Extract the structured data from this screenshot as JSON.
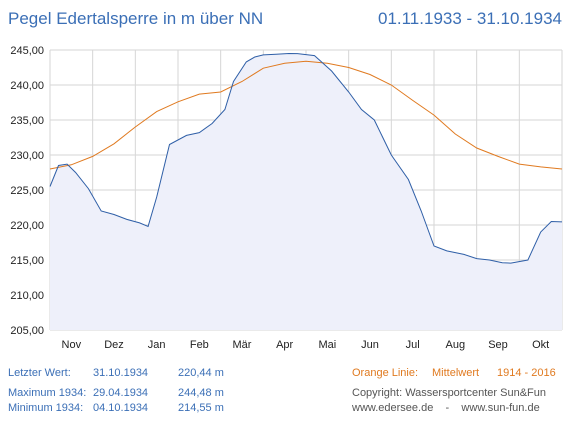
{
  "header": {
    "title": "Pegel Edertalsperre in m über NN",
    "period": "01.11.1933 - 31.10.1934"
  },
  "stats": [
    {
      "label": "Letzter Wert:",
      "date": "31.10.1934",
      "value": "220,44 m"
    },
    {
      "label": "Maximum 1934:",
      "date": "29.04.1934",
      "value": "244,48 m"
    },
    {
      "label": "Minimum  1934:",
      "date": "04.10.1934",
      "value": "214,55 m"
    }
  ],
  "legend": {
    "label": "Orange Linie:",
    "name": "Mittelwert",
    "years": "1914 - 2016"
  },
  "credits": {
    "copyright": "Copyright: Wassersportcenter Sun&Fun",
    "sites": "www.edersee.de    -    www.sun-fun.de"
  },
  "colors": {
    "actual": "#2f5fa7",
    "mean": "#e07a20",
    "fill": "#eef0fa",
    "grid": "#d6d6d6",
    "title": "#3b6fb6"
  },
  "chart_data": {
    "type": "line",
    "xlabel": "",
    "ylabel": "",
    "ylim": [
      205,
      245
    ],
    "yticks": [
      "205,00",
      "210,00",
      "215,00",
      "220,00",
      "225,00",
      "230,00",
      "235,00",
      "240,00",
      "245,00"
    ],
    "xticks": [
      "Nov",
      "Dez",
      "Jan",
      "Feb",
      "Mär",
      "Apr",
      "Mai",
      "Jun",
      "Jul",
      "Aug",
      "Sep",
      "Okt"
    ],
    "x_unit": "month (0 = 1 Nov 1933, 12 = 31 Oct 1934)",
    "grid": true,
    "series": [
      {
        "x": [
          0,
          0.2,
          0.4,
          0.6,
          0.9,
          1.2,
          1.5,
          1.8,
          2.1,
          2.3,
          2.5,
          2.8,
          3.2,
          3.5,
          3.8,
          4.1,
          4.3,
          4.6,
          4.8,
          5.0,
          5.3,
          5.6,
          5.8,
          6.2,
          6.6,
          7.0,
          7.3,
          7.6,
          8.0,
          8.4,
          8.7,
          9.0,
          9.3,
          9.7,
          10.0,
          10.3,
          10.6,
          10.8,
          11.2,
          11.5,
          11.75,
          12.0
        ],
        "values": [
          225.5,
          228.5,
          228.7,
          227.5,
          225.2,
          222.0,
          221.5,
          220.8,
          220.3,
          219.8,
          224.0,
          231.5,
          232.8,
          233.2,
          234.5,
          236.5,
          240.5,
          243.3,
          244.0,
          244.3,
          244.4,
          244.5,
          244.48,
          244.2,
          242.0,
          239.0,
          236.5,
          235.0,
          230.0,
          226.5,
          222.0,
          217.0,
          216.3,
          215.8,
          215.2,
          215.0,
          214.6,
          214.55,
          215.0,
          219.0,
          220.5,
          220.44
        ]
      },
      {
        "name": "Mittelwert",
        "x": [
          0,
          0.5,
          1,
          1.5,
          2,
          2.5,
          3,
          3.5,
          4,
          4.5,
          5,
          5.5,
          6,
          6.5,
          7,
          7.5,
          8,
          8.5,
          9,
          9.5,
          10,
          10.5,
          11,
          11.5,
          12
        ],
        "values": [
          228.0,
          228.6,
          229.8,
          231.6,
          234.0,
          236.2,
          237.6,
          238.7,
          239.0,
          240.5,
          242.4,
          243.1,
          243.4,
          243.1,
          242.5,
          241.5,
          240.0,
          237.8,
          235.7,
          233.0,
          231.0,
          229.8,
          228.7,
          228.3,
          228.0
        ]
      }
    ]
  }
}
